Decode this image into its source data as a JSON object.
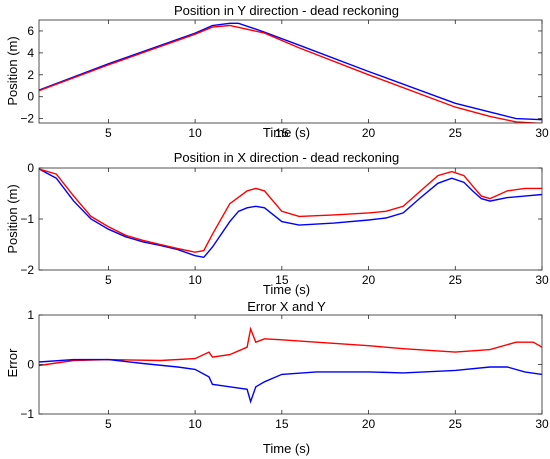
{
  "chart_data": [
    {
      "type": "line",
      "title": "Position in Y direction - dead reckoning",
      "xlabel": "Time (s)",
      "ylabel": "Position (m)",
      "xlim": [
        1,
        30
      ],
      "ylim": [
        -2.4,
        7
      ],
      "xticks": [
        5,
        10,
        15,
        20,
        25,
        30
      ],
      "yticks": [
        -2,
        0,
        2,
        4,
        6
      ],
      "grid": false,
      "series": [
        {
          "color": "#0000ff",
          "x": [
            1,
            5,
            10,
            11,
            12,
            12.5,
            14,
            16,
            20,
            25,
            27.5,
            28.5,
            30
          ],
          "y": [
            0.6,
            3.0,
            5.8,
            6.5,
            6.7,
            6.7,
            5.9,
            4.7,
            2.3,
            -0.6,
            -1.6,
            -2.0,
            -2.1
          ]
        },
        {
          "color": "#ff0000",
          "x": [
            1,
            5,
            10,
            11,
            12,
            14,
            16,
            20,
            25,
            27,
            28.5,
            30
          ],
          "y": [
            0.55,
            2.9,
            5.7,
            6.35,
            6.5,
            5.8,
            4.45,
            2.0,
            -0.95,
            -1.8,
            -2.3,
            -2.45
          ]
        }
      ]
    },
    {
      "type": "line",
      "title": "Position in X direction - dead reckoning",
      "xlabel": "Time (s)",
      "ylabel": "Position (m)",
      "xlim": [
        1,
        30
      ],
      "ylim": [
        -2,
        0
      ],
      "xticks": [
        5,
        10,
        15,
        20,
        25,
        30
      ],
      "yticks": [
        -2,
        -1,
        0
      ],
      "grid": false,
      "series": [
        {
          "color": "#0000ff",
          "x": [
            1,
            2,
            3,
            4,
            5,
            6,
            7,
            8,
            9,
            10,
            10.5,
            11,
            12,
            12.5,
            13,
            13.5,
            14,
            15,
            16,
            18,
            20,
            21,
            22,
            23,
            24,
            24.8,
            25.5,
            26,
            26.5,
            27,
            28,
            29,
            30
          ],
          "y": [
            -0.02,
            -0.2,
            -0.65,
            -1.0,
            -1.2,
            -1.35,
            -1.45,
            -1.52,
            -1.6,
            -1.72,
            -1.75,
            -1.55,
            -1.05,
            -0.85,
            -0.78,
            -0.75,
            -0.78,
            -1.05,
            -1.12,
            -1.08,
            -1.02,
            -0.98,
            -0.88,
            -0.58,
            -0.3,
            -0.2,
            -0.28,
            -0.45,
            -0.6,
            -0.65,
            -0.58,
            -0.55,
            -0.52
          ]
        },
        {
          "color": "#ff0000",
          "x": [
            1,
            2,
            3,
            4,
            5,
            6,
            7,
            8,
            9,
            10,
            10.5,
            11,
            12,
            13,
            13.5,
            14,
            15,
            16,
            18,
            20,
            21,
            22,
            23,
            24,
            24.8,
            25.5,
            26,
            26.5,
            27,
            28,
            29,
            30
          ],
          "y": [
            -0.02,
            -0.12,
            -0.55,
            -0.95,
            -1.15,
            -1.32,
            -1.42,
            -1.5,
            -1.58,
            -1.65,
            -1.62,
            -1.3,
            -0.7,
            -0.45,
            -0.4,
            -0.45,
            -0.85,
            -0.95,
            -0.92,
            -0.88,
            -0.85,
            -0.75,
            -0.45,
            -0.15,
            -0.07,
            -0.15,
            -0.35,
            -0.55,
            -0.6,
            -0.45,
            -0.4,
            -0.4
          ]
        }
      ]
    },
    {
      "type": "line",
      "title": "Error X and Y",
      "xlabel": "Time (s)",
      "ylabel": "Error",
      "xlim": [
        1,
        30
      ],
      "ylim": [
        -1,
        1
      ],
      "xticks": [
        5,
        10,
        15,
        20,
        25,
        30
      ],
      "yticks": [
        -1,
        0,
        1
      ],
      "grid": false,
      "series": [
        {
          "color": "#ff0000",
          "x": [
            1,
            3,
            5,
            8,
            10,
            10.8,
            11,
            12,
            13,
            13.2,
            13.5,
            14,
            15,
            17,
            20,
            22,
            25,
            27,
            28.5,
            29.5,
            30
          ],
          "y": [
            -0.02,
            0.08,
            0.1,
            0.08,
            0.12,
            0.25,
            0.15,
            0.2,
            0.35,
            0.72,
            0.45,
            0.52,
            0.5,
            0.45,
            0.38,
            0.32,
            0.25,
            0.3,
            0.45,
            0.45,
            0.35
          ]
        },
        {
          "color": "#0000ff",
          "x": [
            1,
            3,
            5,
            7,
            9,
            10,
            10.8,
            11,
            12,
            13,
            13.2,
            13.5,
            14,
            15,
            17,
            20,
            22,
            25,
            27,
            28,
            29,
            30
          ],
          "y": [
            0.05,
            0.1,
            0.1,
            0.02,
            -0.05,
            -0.1,
            -0.25,
            -0.4,
            -0.45,
            -0.5,
            -0.75,
            -0.45,
            -0.35,
            -0.2,
            -0.15,
            -0.15,
            -0.17,
            -0.12,
            -0.05,
            -0.05,
            -0.15,
            -0.2
          ]
        }
      ]
    }
  ]
}
